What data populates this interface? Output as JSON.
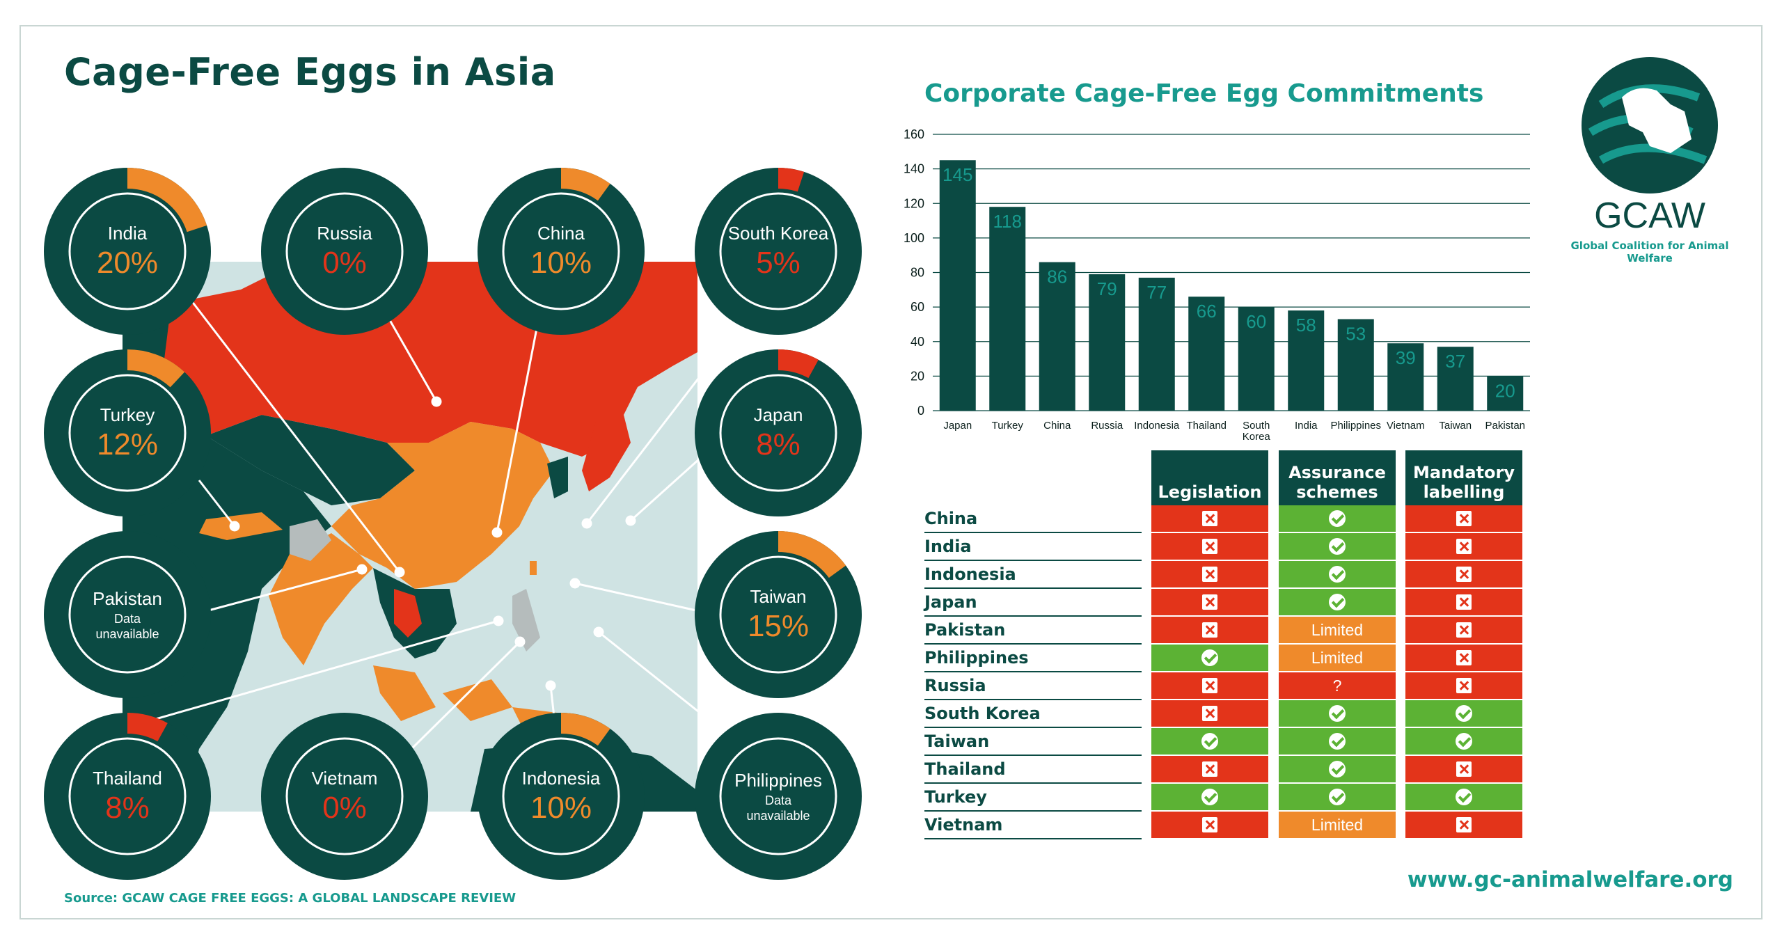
{
  "title": "Cage-Free Eggs in Asia",
  "source": "Source: GCAW CAGE FREE EGGS: A GLOBAL LANDSCAPE REVIEW",
  "website": "www.gc-animalwelfare.org",
  "logo": {
    "name": "GCAW",
    "subtitle": "Global Coalition for Animal Welfare"
  },
  "colors": {
    "dark": "#0b4a43",
    "teal": "#179a8e",
    "orange": "#ef8a2b",
    "red": "#e3341a",
    "green": "#5cb234",
    "map_sea": "#cfe3e3"
  },
  "donuts": [
    {
      "country": "India",
      "percent_label": "20%",
      "value": 20,
      "color": "#ef8a2b"
    },
    {
      "country": "Russia",
      "percent_label": "0%",
      "value": 0,
      "color": "#e3341a"
    },
    {
      "country": "China",
      "percent_label": "10%",
      "value": 10,
      "color": "#ef8a2b"
    },
    {
      "country": "South Korea",
      "percent_label": "5%",
      "value": 5,
      "color": "#e3341a"
    },
    {
      "country": "Turkey",
      "percent_label": "12%",
      "value": 12,
      "color": "#ef8a2b"
    },
    {
      "country": "Japan",
      "percent_label": "8%",
      "value": 8,
      "color": "#e3341a"
    },
    {
      "country": "Pakistan",
      "note": "Data unavailable"
    },
    {
      "country": "Taiwan",
      "percent_label": "15%",
      "value": 15,
      "color": "#ef8a2b"
    },
    {
      "country": "Thailand",
      "percent_label": "8%",
      "value": 8,
      "color": "#e3341a"
    },
    {
      "country": "Vietnam",
      "percent_label": "0%",
      "value": 0,
      "color": "#e3341a"
    },
    {
      "country": "Indonesia",
      "percent_label": "10%",
      "value": 10,
      "color": "#ef8a2b"
    },
    {
      "country": "Philippines",
      "note": "Data unavailable"
    }
  ],
  "chart_data": {
    "type": "bar",
    "title": "Corporate Cage-Free Egg Commitments",
    "categories": [
      "Japan",
      "Turkey",
      "China",
      "Russia",
      "Indonesia",
      "Thailand",
      "South Korea",
      "India",
      "Philippines",
      "Vietnam",
      "Taiwan",
      "Pakistan"
    ],
    "values": [
      145,
      118,
      86,
      79,
      77,
      66,
      60,
      58,
      53,
      39,
      37,
      20
    ],
    "ylim": [
      0,
      160
    ],
    "yticks": [
      0,
      20,
      40,
      60,
      80,
      100,
      120,
      140,
      160
    ],
    "grid": true,
    "bar_color": "#0b4a43",
    "label_color": "#179a8e"
  },
  "table": {
    "headers": [
      "Legislation",
      "Assurance schemes",
      "Mandatory labelling"
    ],
    "rows": [
      {
        "country": "China",
        "cells": [
          {
            "s": "no"
          },
          {
            "s": "yes"
          },
          {
            "s": "no"
          }
        ]
      },
      {
        "country": "India",
        "cells": [
          {
            "s": "no"
          },
          {
            "s": "yes"
          },
          {
            "s": "no"
          }
        ]
      },
      {
        "country": "Indonesia",
        "cells": [
          {
            "s": "no"
          },
          {
            "s": "yes"
          },
          {
            "s": "no"
          }
        ]
      },
      {
        "country": "Japan",
        "cells": [
          {
            "s": "no"
          },
          {
            "s": "yes"
          },
          {
            "s": "no"
          }
        ]
      },
      {
        "country": "Pakistan",
        "cells": [
          {
            "s": "no"
          },
          {
            "s": "limited",
            "text": "Limited"
          },
          {
            "s": "no"
          }
        ]
      },
      {
        "country": "Philippines",
        "cells": [
          {
            "s": "yes"
          },
          {
            "s": "limited",
            "text": "Limited"
          },
          {
            "s": "no"
          }
        ]
      },
      {
        "country": "Russia",
        "cells": [
          {
            "s": "no"
          },
          {
            "s": "unknown",
            "text": "?"
          },
          {
            "s": "no"
          }
        ]
      },
      {
        "country": "South Korea",
        "cells": [
          {
            "s": "no"
          },
          {
            "s": "yes"
          },
          {
            "s": "yes"
          }
        ]
      },
      {
        "country": "Taiwan",
        "cells": [
          {
            "s": "yes"
          },
          {
            "s": "yes"
          },
          {
            "s": "yes"
          }
        ]
      },
      {
        "country": "Thailand",
        "cells": [
          {
            "s": "no"
          },
          {
            "s": "yes"
          },
          {
            "s": "no"
          }
        ]
      },
      {
        "country": "Turkey",
        "cells": [
          {
            "s": "yes"
          },
          {
            "s": "yes"
          },
          {
            "s": "yes"
          }
        ]
      },
      {
        "country": "Vietnam",
        "cells": [
          {
            "s": "no"
          },
          {
            "s": "limited",
            "text": "Limited"
          },
          {
            "s": "no"
          }
        ]
      }
    ]
  }
}
